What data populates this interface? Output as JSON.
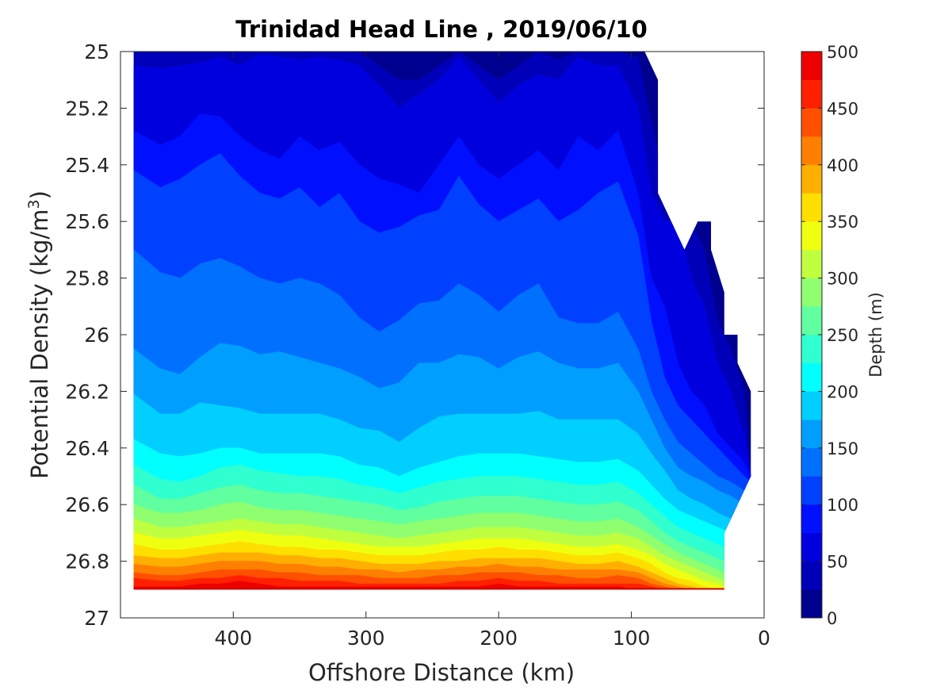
{
  "chart_data": {
    "type": "heatmap",
    "subtype": "filled-contour",
    "title": "Trinidad Head Line , 2019/06/10",
    "xlabel": "Offshore Distance (km)",
    "ylabel_main": "Potential Density (kg/m",
    "ylabel_sup": "3",
    "ylabel_close": ")",
    "x_reversed": true,
    "y_reversed": true,
    "xlim": [
      0,
      485
    ],
    "ylim": [
      25,
      27
    ],
    "xticks": [
      400,
      300,
      200,
      100,
      0
    ],
    "yticks": [
      25,
      25.2,
      25.4,
      25.6,
      25.8,
      26,
      26.2,
      26.4,
      26.6,
      26.8,
      27
    ],
    "ytick_labels": [
      "25",
      "25.2",
      "25.4",
      "25.6",
      "25.8",
      "26",
      "26.2",
      "26.4",
      "26.6",
      "26.8",
      "27"
    ],
    "grid": false,
    "data_extent": {
      "x_min": 10,
      "x_max": 475,
      "y_min": 25,
      "y_max": 26.9
    },
    "colorbar": {
      "label": "Depth (m)",
      "range": [
        0,
        500
      ],
      "ticks": [
        0,
        50,
        100,
        150,
        200,
        250,
        300,
        350,
        400,
        450,
        500
      ],
      "level_step": 25,
      "colors": [
        "#00008f",
        "#0000b8",
        "#0000df",
        "#0010ff",
        "#0040ff",
        "#0070ff",
        "#009fff",
        "#00cfff",
        "#00ffff",
        "#30ffcf",
        "#60ff9f",
        "#8fff70",
        "#bfff40",
        "#efff10",
        "#ffdf00",
        "#ffaf00",
        "#ff8000",
        "#ff5000",
        "#ff2000",
        "#ef0000",
        "#bf0000"
      ]
    },
    "x_stations": [
      475,
      455,
      440,
      425,
      410,
      395,
      380,
      365,
      350,
      335,
      320,
      305,
      290,
      275,
      260,
      245,
      230,
      215,
      200,
      185,
      170,
      155,
      140,
      125,
      110,
      95,
      85,
      75,
      65,
      55,
      45,
      35,
      25,
      15,
      10
    ],
    "contour_levels": [
      25,
      50,
      75,
      100,
      125,
      150,
      175,
      200,
      225,
      250,
      275,
      300,
      325,
      350,
      375,
      400,
      425,
      450,
      475
    ],
    "isobath_density": [
      [
        25.0,
        25.0,
        25.0,
        25.0,
        25.0,
        24.99,
        25.0,
        25.0,
        25.0,
        25.0,
        25.0,
        25.0,
        25.05,
        25.1,
        25.1,
        25.05,
        25.0,
        25.05,
        25.1,
        25.05,
        25.0,
        25.03,
        25.0,
        25.0,
        25.0,
        25.02,
        25.25,
        25.45,
        25.7,
        25.6,
        25.7,
        25.95,
        26.05,
        26.2,
        26.5
      ],
      [
        25.05,
        25.06,
        25.05,
        25.04,
        25.02,
        25.05,
        25.01,
        25.02,
        25.03,
        25.02,
        25.03,
        25.05,
        25.12,
        25.2,
        25.15,
        25.1,
        25.02,
        25.1,
        25.18,
        25.12,
        25.08,
        25.1,
        25.02,
        25.05,
        25.05,
        25.2,
        25.5,
        25.6,
        25.6,
        25.8,
        25.9,
        26.1,
        26.2,
        26.35,
        26.5
      ],
      [
        25.28,
        25.33,
        25.3,
        25.22,
        25.23,
        25.3,
        25.35,
        25.38,
        25.3,
        25.35,
        25.32,
        25.4,
        25.45,
        25.47,
        25.5,
        25.4,
        25.3,
        25.4,
        25.45,
        25.4,
        25.35,
        25.42,
        25.3,
        25.35,
        25.28,
        25.5,
        25.8,
        25.9,
        26.1,
        26.2,
        26.25,
        26.35,
        26.4,
        26.45,
        26.5
      ],
      [
        25.42,
        25.48,
        25.45,
        25.4,
        25.36,
        25.44,
        25.5,
        25.52,
        25.48,
        25.55,
        25.5,
        25.6,
        25.64,
        25.62,
        25.58,
        25.56,
        25.44,
        25.54,
        25.6,
        25.56,
        25.52,
        25.6,
        25.56,
        25.5,
        25.46,
        25.65,
        25.95,
        26.15,
        26.25,
        26.3,
        26.35,
        26.4,
        26.45,
        26.5,
        26.52
      ],
      [
        25.7,
        25.78,
        25.8,
        25.75,
        25.73,
        25.76,
        25.8,
        25.82,
        25.8,
        25.82,
        25.86,
        25.94,
        25.99,
        25.95,
        25.89,
        25.88,
        25.82,
        25.86,
        25.92,
        25.86,
        25.82,
        25.94,
        25.96,
        25.96,
        25.92,
        26.05,
        26.2,
        26.3,
        26.38,
        26.42,
        26.46,
        26.5,
        26.52,
        26.55,
        26.56
      ],
      [
        26.05,
        26.12,
        26.14,
        26.08,
        26.03,
        26.04,
        26.07,
        26.06,
        26.08,
        26.1,
        26.12,
        26.15,
        26.19,
        26.17,
        26.1,
        26.1,
        26.07,
        26.08,
        26.12,
        26.08,
        26.06,
        26.1,
        26.12,
        26.12,
        26.1,
        26.2,
        26.3,
        26.4,
        26.47,
        26.5,
        26.52,
        26.55,
        26.57,
        26.6,
        26.62
      ],
      [
        26.21,
        26.28,
        26.28,
        26.24,
        26.25,
        26.26,
        26.28,
        26.28,
        26.28,
        26.28,
        26.3,
        26.33,
        26.34,
        26.38,
        26.33,
        26.29,
        26.28,
        26.28,
        26.28,
        26.28,
        26.27,
        26.3,
        26.3,
        26.3,
        26.3,
        26.35,
        26.42,
        26.48,
        26.55,
        26.58,
        26.6,
        26.63,
        26.65,
        26.68,
        26.7
      ],
      [
        26.37,
        26.42,
        26.43,
        26.42,
        26.4,
        26.4,
        26.42,
        26.42,
        26.42,
        26.42,
        26.43,
        26.46,
        26.47,
        26.5,
        26.47,
        26.45,
        26.43,
        26.42,
        26.42,
        26.42,
        26.43,
        26.44,
        26.45,
        26.45,
        26.44,
        26.48,
        26.53,
        26.58,
        26.62,
        26.64,
        26.66,
        26.68,
        26.7,
        26.72,
        26.74
      ],
      [
        26.46,
        26.51,
        26.52,
        26.5,
        26.47,
        26.46,
        26.48,
        26.49,
        26.5,
        26.5,
        26.51,
        26.53,
        26.54,
        26.56,
        26.54,
        26.52,
        26.51,
        26.5,
        26.5,
        26.5,
        26.51,
        26.52,
        26.53,
        26.53,
        26.52,
        26.56,
        26.6,
        26.64,
        26.68,
        26.7,
        26.72,
        26.74,
        26.76,
        26.78,
        26.8
      ],
      [
        26.53,
        26.58,
        26.58,
        26.56,
        26.54,
        26.53,
        26.55,
        26.56,
        26.56,
        26.57,
        26.58,
        26.59,
        26.6,
        26.62,
        26.61,
        26.59,
        26.58,
        26.57,
        26.57,
        26.57,
        26.58,
        26.59,
        26.6,
        26.6,
        26.59,
        26.62,
        26.66,
        26.7,
        26.73,
        26.75,
        26.77,
        26.79,
        26.81,
        26.83,
        26.85
      ],
      [
        26.6,
        26.63,
        26.63,
        26.62,
        26.6,
        26.59,
        26.61,
        26.62,
        26.62,
        26.63,
        26.64,
        26.65,
        26.66,
        26.67,
        26.66,
        26.65,
        26.64,
        26.63,
        26.63,
        26.63,
        26.64,
        26.65,
        26.66,
        26.66,
        26.65,
        26.68,
        26.71,
        26.74,
        26.77,
        26.79,
        26.81,
        26.83,
        26.85,
        26.87,
        26.9
      ],
      [
        26.65,
        26.68,
        26.68,
        26.67,
        26.66,
        26.65,
        26.66,
        26.67,
        26.67,
        26.68,
        26.69,
        26.7,
        26.71,
        26.72,
        26.71,
        26.7,
        26.69,
        26.68,
        26.68,
        26.68,
        26.69,
        26.7,
        26.71,
        26.71,
        26.7,
        26.72,
        26.75,
        26.78,
        26.8,
        26.82,
        26.84,
        26.86,
        26.88,
        26.9,
        26.9
      ],
      [
        26.7,
        26.72,
        26.72,
        26.71,
        26.7,
        26.69,
        26.7,
        26.71,
        26.71,
        26.72,
        26.73,
        26.74,
        26.75,
        26.75,
        26.75,
        26.74,
        26.73,
        26.72,
        26.72,
        26.72,
        26.73,
        26.74,
        26.75,
        26.75,
        26.74,
        26.76,
        26.78,
        26.81,
        26.83,
        26.85,
        26.87,
        26.88,
        26.9,
        26.9,
        26.9
      ],
      [
        26.74,
        26.76,
        26.76,
        26.75,
        26.74,
        26.73,
        26.74,
        26.75,
        26.75,
        26.76,
        26.76,
        26.77,
        26.78,
        26.78,
        26.78,
        26.77,
        26.76,
        26.76,
        26.75,
        26.76,
        26.76,
        26.77,
        26.78,
        26.78,
        26.77,
        26.79,
        26.81,
        26.84,
        26.86,
        26.87,
        26.89,
        26.9,
        26.9,
        26.9,
        26.9
      ],
      [
        26.78,
        26.79,
        26.79,
        26.78,
        26.77,
        26.77,
        26.77,
        26.78,
        26.78,
        26.79,
        26.79,
        26.8,
        26.81,
        26.81,
        26.81,
        26.8,
        26.8,
        26.79,
        26.79,
        26.79,
        26.79,
        26.8,
        26.81,
        26.81,
        26.8,
        26.82,
        26.84,
        26.86,
        26.88,
        26.89,
        26.9,
        26.9,
        26.9,
        26.9,
        26.9
      ],
      [
        26.81,
        26.82,
        26.82,
        26.81,
        26.8,
        26.8,
        26.8,
        26.81,
        26.81,
        26.82,
        26.82,
        26.83,
        26.83,
        26.84,
        26.83,
        26.83,
        26.82,
        26.82,
        26.81,
        26.82,
        26.82,
        26.83,
        26.83,
        26.83,
        26.83,
        26.84,
        26.86,
        26.88,
        26.89,
        26.9,
        26.9,
        26.9,
        26.9,
        26.9,
        26.9
      ],
      [
        26.84,
        26.85,
        26.85,
        26.84,
        26.83,
        26.83,
        26.83,
        26.84,
        26.84,
        26.85,
        26.85,
        26.85,
        26.86,
        26.86,
        26.86,
        26.85,
        26.85,
        26.84,
        26.84,
        26.84,
        26.85,
        26.85,
        26.86,
        26.86,
        26.85,
        26.86,
        26.88,
        26.89,
        26.9,
        26.9,
        26.9,
        26.9,
        26.9,
        26.9,
        26.9
      ],
      [
        26.86,
        26.87,
        26.87,
        26.86,
        26.86,
        26.85,
        26.86,
        26.86,
        26.87,
        26.87,
        26.87,
        26.88,
        26.88,
        26.88,
        26.88,
        26.88,
        26.87,
        26.87,
        26.86,
        26.87,
        26.87,
        26.88,
        26.88,
        26.88,
        26.88,
        26.88,
        26.89,
        26.9,
        26.9,
        26.9,
        26.9,
        26.9,
        26.9,
        26.9,
        26.9
      ],
      [
        26.89,
        26.89,
        26.89,
        26.88,
        26.88,
        26.87,
        26.88,
        26.89,
        26.89,
        26.89,
        26.89,
        26.89,
        26.89,
        26.89,
        26.89,
        26.89,
        26.89,
        26.89,
        26.88,
        26.89,
        26.89,
        26.89,
        26.89,
        26.89,
        26.89,
        26.9,
        26.9,
        26.9,
        26.9,
        26.9,
        26.9,
        26.9,
        26.9,
        26.9,
        26.9
      ]
    ],
    "shelf_boundary": [
      {
        "x": 90,
        "y": 25.0
      },
      {
        "x": 80,
        "y": 25.1
      },
      {
        "x": 80,
        "y": 25.5
      },
      {
        "x": 60,
        "y": 25.7
      },
      {
        "x": 50,
        "y": 25.6
      },
      {
        "x": 40,
        "y": 25.6
      },
      {
        "x": 40,
        "y": 25.7
      },
      {
        "x": 30,
        "y": 25.85
      },
      {
        "x": 30,
        "y": 26.0
      },
      {
        "x": 20,
        "y": 26.0
      },
      {
        "x": 20,
        "y": 26.1
      },
      {
        "x": 10,
        "y": 26.2
      },
      {
        "x": 10,
        "y": 26.5
      },
      {
        "x": 20,
        "y": 26.6
      },
      {
        "x": 30,
        "y": 26.7
      },
      {
        "x": 30,
        "y": 26.9
      }
    ]
  }
}
